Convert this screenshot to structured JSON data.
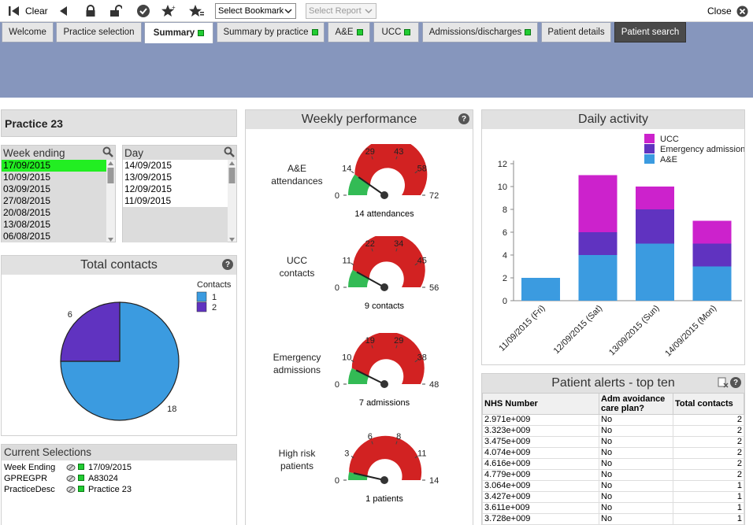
{
  "toolbar": {
    "clear_label": "Clear",
    "bookmark_select": "Select Bookmark",
    "report_select": "Select Report",
    "close_label": "Close"
  },
  "tabs": [
    {
      "label": "Welcome"
    },
    {
      "label": "Practice selection"
    },
    {
      "label": "Summary"
    },
    {
      "label": "Summary by practice"
    },
    {
      "label": "A&E"
    },
    {
      "label": "UCC"
    },
    {
      "label": "Admissions/discharges"
    },
    {
      "label": "Patient details"
    },
    {
      "label": "Patient search"
    }
  ],
  "practice_title": "Practice 23",
  "week_list": {
    "header": "Week ending",
    "items": [
      "17/09/2015",
      "10/09/2015",
      "03/09/2015",
      "27/08/2015",
      "20/08/2015",
      "13/08/2015",
      "06/08/2015"
    ]
  },
  "day_list": {
    "header": "Day",
    "items": [
      "14/09/2015",
      "13/09/2015",
      "12/09/2015",
      "11/09/2015"
    ]
  },
  "total_contacts": {
    "title": "Total contacts",
    "help": "?",
    "legend_title": "Contacts",
    "chart_data": {
      "type": "pie",
      "labels": [
        "1",
        "2"
      ],
      "values": [
        18,
        6
      ],
      "colors": [
        "#3b9be0",
        "#6033c0"
      ],
      "title": "Total contacts",
      "legend_title": "Contacts"
    }
  },
  "current_selections": {
    "title": "Current Selections",
    "rows": [
      {
        "field": "Week Ending",
        "value": "17/09/2015"
      },
      {
        "field": "GPREGPR",
        "value": "A83024"
      },
      {
        "field": "PracticeDesc",
        "value": "Practice 23"
      }
    ]
  },
  "weekly": {
    "title": "Weekly performance",
    "help": "?",
    "gauges": [
      {
        "label1": "A&E",
        "label2": "attendances",
        "ticks": [
          "0",
          "14",
          "29",
          "43",
          "58",
          "72"
        ],
        "max": 72,
        "value": 14,
        "caption": "14 attendances"
      },
      {
        "label1": "UCC",
        "label2": "contacts",
        "ticks": [
          "0",
          "11",
          "22",
          "34",
          "45",
          "56"
        ],
        "max": 56,
        "value": 9,
        "caption": "9 contacts"
      },
      {
        "label1": "Emergency",
        "label2": "admissions",
        "ticks": [
          "0",
          "10",
          "19",
          "29",
          "38",
          "48"
        ],
        "max": 48,
        "value": 7,
        "caption": "7 admissions"
      },
      {
        "label1": "High risk",
        "label2": "patients",
        "ticks": [
          "0",
          "3",
          "6",
          "8",
          "11",
          "14"
        ],
        "max": 14,
        "value": 1,
        "caption": "1 patients"
      }
    ]
  },
  "daily": {
    "title": "Daily activity",
    "chart_data": {
      "type": "bar",
      "stacked": true,
      "title": "Daily activity",
      "categories": [
        "11/09/2015 (Fri)",
        "12/09/2015 (Sat)",
        "13/09/2015 (Sun)",
        "14/09/2015 (Mon)"
      ],
      "series": [
        {
          "name": "A&E",
          "values": [
            2,
            4,
            5,
            3
          ],
          "color": "#3b9be0"
        },
        {
          "name": "Emergency admission",
          "values": [
            0,
            2,
            3,
            2
          ],
          "color": "#6033c0"
        },
        {
          "name": "UCC",
          "values": [
            0,
            5,
            2,
            2
          ],
          "color": "#cc22cc"
        }
      ],
      "yticks": [
        "0",
        "2",
        "4",
        "6",
        "8",
        "10",
        "12"
      ],
      "ylim": [
        0,
        13
      ],
      "legend": "top-right"
    }
  },
  "alerts": {
    "title": "Patient alerts - top ten",
    "help": "?",
    "headers": [
      "NHS Number",
      "Adm avoidance care plan?",
      "Total contacts"
    ],
    "rows": [
      [
        "2.971e+009",
        "No",
        "2"
      ],
      [
        "3.323e+009",
        "No",
        "2"
      ],
      [
        "3.475e+009",
        "No",
        "2"
      ],
      [
        "4.074e+009",
        "No",
        "2"
      ],
      [
        "4.616e+009",
        "No",
        "2"
      ],
      [
        "4.779e+009",
        "No",
        "2"
      ],
      [
        "3.064e+009",
        "No",
        "1"
      ],
      [
        "3.427e+009",
        "No",
        "1"
      ],
      [
        "3.611e+009",
        "No",
        "1"
      ],
      [
        "3.728e+009",
        "No",
        "1"
      ]
    ]
  }
}
